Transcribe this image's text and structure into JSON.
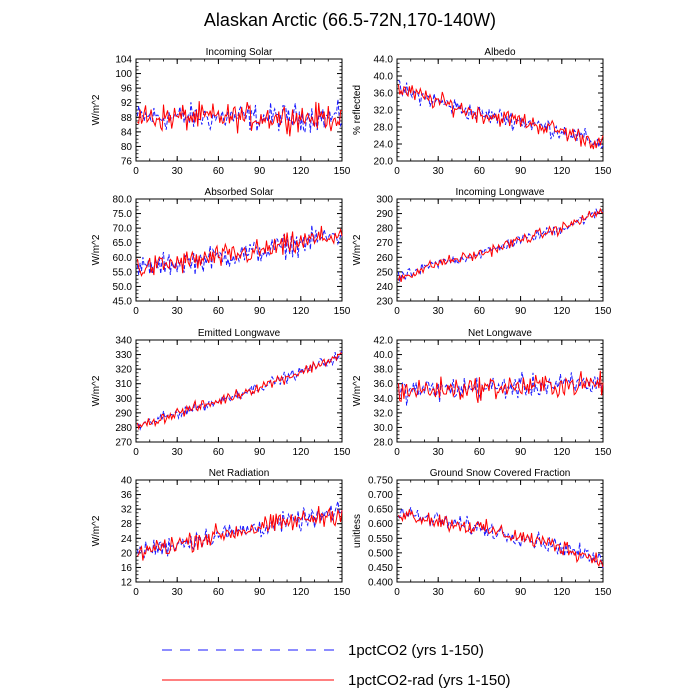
{
  "title": "Alaskan Arctic (66.5-72N,170-140W)",
  "colors": {
    "series_1": "#1a1aff",
    "series_2": "#ff0000"
  },
  "legend": {
    "placement": "bottom-center",
    "items": [
      {
        "label": "1pctCO2 (yrs 1-150)",
        "style": "dashed",
        "color": "#1a1aff"
      },
      {
        "label": "1pctCO2-rad (yrs 1-150)",
        "style": "solid",
        "color": "#ff0000"
      }
    ]
  },
  "chart_data": [
    {
      "type": "line",
      "title": "Incoming Solar",
      "xlabel": "",
      "ylabel": "W/m^2",
      "xlim": [
        0,
        150
      ],
      "ylim": [
        76,
        104
      ],
      "xticks": [
        "0",
        "30",
        "60",
        "90",
        "120",
        "150"
      ],
      "yticks": [
        "76",
        "80",
        "84",
        "88",
        "92",
        "96",
        "100",
        "104"
      ],
      "trend": [
        [
          0,
          88
        ],
        [
          150,
          88
        ]
      ],
      "noise": 3.2,
      "series": [
        {
          "key": "1pctCO2",
          "style": "dashed"
        },
        {
          "key": "1pctCO2-rad",
          "style": "solid"
        }
      ]
    },
    {
      "type": "line",
      "title": "Albedo",
      "xlabel": "",
      "ylabel": "% reflected",
      "xlim": [
        0,
        150
      ],
      "ylim": [
        20.0,
        44.0
      ],
      "xticks": [
        "0",
        "30",
        "60",
        "90",
        "120",
        "150"
      ],
      "yticks": [
        "20.0",
        "24.0",
        "28.0",
        "32.0",
        "36.0",
        "40.0",
        "44.0"
      ],
      "trend": [
        [
          0,
          37
        ],
        [
          30,
          34
        ],
        [
          60,
          31
        ],
        [
          90,
          29.5
        ],
        [
          120,
          27
        ],
        [
          150,
          24
        ]
      ],
      "noise": 1.8,
      "series": [
        {
          "key": "1pctCO2",
          "style": "dashed"
        },
        {
          "key": "1pctCO2-rad",
          "style": "solid"
        }
      ]
    },
    {
      "type": "line",
      "title": "Absorbed Solar",
      "xlabel": "",
      "ylabel": "W/m^2",
      "xlim": [
        0,
        150
      ],
      "ylim": [
        45.0,
        80.0
      ],
      "xticks": [
        "0",
        "30",
        "60",
        "90",
        "120",
        "150"
      ],
      "yticks": [
        "45.0",
        "50.0",
        "55.0",
        "60.0",
        "65.0",
        "70.0",
        "75.0",
        "80.0"
      ],
      "trend": [
        [
          0,
          56
        ],
        [
          30,
          58
        ],
        [
          60,
          60
        ],
        [
          90,
          62
        ],
        [
          120,
          65
        ],
        [
          150,
          68
        ]
      ],
      "noise": 3.5,
      "series": [
        {
          "key": "1pctCO2",
          "style": "dashed"
        },
        {
          "key": "1pctCO2-rad",
          "style": "solid"
        }
      ]
    },
    {
      "type": "line",
      "title": "Incoming Longwave",
      "xlabel": "",
      "ylabel": "W/m^2",
      "xlim": [
        0,
        150
      ],
      "ylim": [
        230,
        300
      ],
      "xticks": [
        "0",
        "30",
        "60",
        "90",
        "120",
        "150"
      ],
      "yticks": [
        "230",
        "240",
        "250",
        "260",
        "270",
        "280",
        "290",
        "300"
      ],
      "trend": [
        [
          0,
          245
        ],
        [
          30,
          256
        ],
        [
          60,
          262
        ],
        [
          90,
          272
        ],
        [
          120,
          280
        ],
        [
          150,
          292
        ]
      ],
      "noise": 3.2,
      "series": [
        {
          "key": "1pctCO2",
          "style": "dashed"
        },
        {
          "key": "1pctCO2-rad",
          "style": "solid"
        }
      ]
    },
    {
      "type": "line",
      "title": "Emitted Longwave",
      "xlabel": "",
      "ylabel": "W/m^2",
      "xlim": [
        0,
        150
      ],
      "ylim": [
        270,
        340
      ],
      "xticks": [
        "0",
        "30",
        "60",
        "90",
        "120",
        "150"
      ],
      "yticks": [
        "270",
        "280",
        "290",
        "300",
        "310",
        "320",
        "330",
        "340"
      ],
      "trend": [
        [
          0,
          280
        ],
        [
          30,
          290
        ],
        [
          60,
          298
        ],
        [
          90,
          308
        ],
        [
          120,
          318
        ],
        [
          150,
          330
        ]
      ],
      "noise": 3.2,
      "series": [
        {
          "key": "1pctCO2",
          "style": "dashed"
        },
        {
          "key": "1pctCO2-rad",
          "style": "solid"
        }
      ]
    },
    {
      "type": "line",
      "title": "Net Longwave",
      "xlabel": "",
      "ylabel": "W/m^2",
      "xlim": [
        0,
        150
      ],
      "ylim": [
        28.0,
        42.0
      ],
      "xticks": [
        "0",
        "30",
        "60",
        "90",
        "120",
        "150"
      ],
      "yticks": [
        "28.0",
        "30.0",
        "32.0",
        "34.0",
        "36.0",
        "38.0",
        "40.0",
        "42.0"
      ],
      "trend": [
        [
          0,
          35
        ],
        [
          150,
          36
        ]
      ],
      "noise": 1.4,
      "series": [
        {
          "key": "1pctCO2",
          "style": "dashed"
        },
        {
          "key": "1pctCO2-rad",
          "style": "solid"
        }
      ]
    },
    {
      "type": "line",
      "title": "Net Radiation",
      "xlabel": "",
      "ylabel": "W/m^2",
      "xlim": [
        0,
        150
      ],
      "ylim": [
        12,
        40
      ],
      "xticks": [
        "0",
        "30",
        "60",
        "90",
        "120",
        "150"
      ],
      "yticks": [
        "12",
        "16",
        "20",
        "24",
        "28",
        "32",
        "36",
        "40"
      ],
      "trend": [
        [
          0,
          20
        ],
        [
          30,
          22.5
        ],
        [
          60,
          25
        ],
        [
          90,
          27
        ],
        [
          120,
          29
        ],
        [
          150,
          31
        ]
      ],
      "noise": 2.4,
      "series": [
        {
          "key": "1pctCO2",
          "style": "dashed"
        },
        {
          "key": "1pctCO2-rad",
          "style": "solid"
        }
      ]
    },
    {
      "type": "line",
      "title": "Ground Snow Covered Fraction",
      "xlabel": "",
      "ylabel": "unitless",
      "xlim": [
        0,
        150
      ],
      "ylim": [
        0.4,
        0.75
      ],
      "xticks": [
        "0",
        "30",
        "60",
        "90",
        "120",
        "150"
      ],
      "yticks": [
        "0.400",
        "0.450",
        "0.500",
        "0.550",
        "0.600",
        "0.650",
        "0.700",
        "0.750"
      ],
      "trend": [
        [
          0,
          0.64
        ],
        [
          30,
          0.61
        ],
        [
          60,
          0.585
        ],
        [
          90,
          0.555
        ],
        [
          120,
          0.52
        ],
        [
          150,
          0.47
        ]
      ],
      "noise": 0.025,
      "series": [
        {
          "key": "1pctCO2",
          "style": "dashed"
        },
        {
          "key": "1pctCO2-rad",
          "style": "solid"
        }
      ]
    }
  ]
}
